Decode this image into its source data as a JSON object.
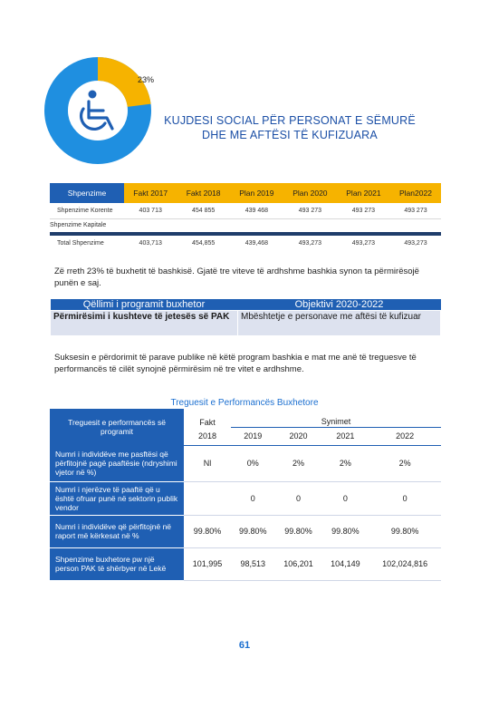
{
  "chart": {
    "label": "23%",
    "chart_data": {
      "type": "pie",
      "variant": "donut",
      "values": [
        23,
        77
      ],
      "colors": [
        "#f6b300",
        "#1f8fe0"
      ]
    },
    "icon": "wheelchair-icon"
  },
  "title": {
    "line1": "KUJDESI SOCIAL PËR PERSONAT E SËMURË",
    "line2": "DHE ME AFTËSI TË KUFIZUARA"
  },
  "budget": {
    "headers": [
      "Shpenzime",
      "Fakt 2017",
      "Fakt 2018",
      "Plan 2019",
      "Plan 2020",
      "Plan 2021",
      "Plan2022"
    ],
    "rows": [
      [
        "Shpenzime Korente",
        "403 713",
        "454 855",
        "439 468",
        "493 273",
        "493 273",
        "493 273"
      ]
    ],
    "capital_label": "Shpenzime Kapitale",
    "total": [
      "Total Shpenzime",
      "403,713",
      "454,855",
      "439,468",
      "493,273",
      "493,273",
      "493,273"
    ]
  },
  "para1": "Zë rreth 23% të buxhetit të bashkisë. Gjatë tre viteve të ardhshme bashkia synon ta përmirësojë punën e saj.",
  "goal": {
    "h_left": "Qëllimi i programit buxhetor",
    "h_right": "Objektivi 2020-2022",
    "b_left": "Përmirësimi i kushteve të jetesës së PAK",
    "b_right": "Mbështetje e personave me aftësi të kufizuar"
  },
  "para2": "Suksesin e përdorimit të parave publike në këtë program bashkia e mat me anë të treguesve të performancës të cilët synojnë përmirësim në tre vitet e ardhshme.",
  "section_title": "Treguesit e Performancës Buxhetore",
  "indicators": {
    "label_header": "Treguesit e performancës së programit",
    "fakt": "Fakt",
    "synimet": "Synimet",
    "years": [
      "2018",
      "2019",
      "2020",
      "2021",
      "2022"
    ],
    "rows": [
      {
        "label": "Numri i individëve me pasftësi që përfitojnë pagë paaftësie (ndryshimi vjetor në %)",
        "values": [
          "Nl",
          "0%",
          "2%",
          "2%",
          "2%"
        ]
      },
      {
        "label": "Numri i njerëzve të paaftë që u është ofruar punë në sektorin publik vendor",
        "values": [
          "",
          "0",
          "0",
          "0",
          "0"
        ]
      },
      {
        "label": "Numri i individëve që përfitojnë në raport më kërkesat në %",
        "values": [
          "99.80%",
          "99.80%",
          "99.80%",
          "99.80%",
          "99.80%"
        ]
      },
      {
        "label": "Shpenzime buxhetore pw një person PAK të shërbyer në Lekë",
        "values": [
          "101,995",
          "98,513",
          "106,201",
          "104,149",
          "102,024,816"
        ]
      }
    ]
  },
  "page_number": "61"
}
